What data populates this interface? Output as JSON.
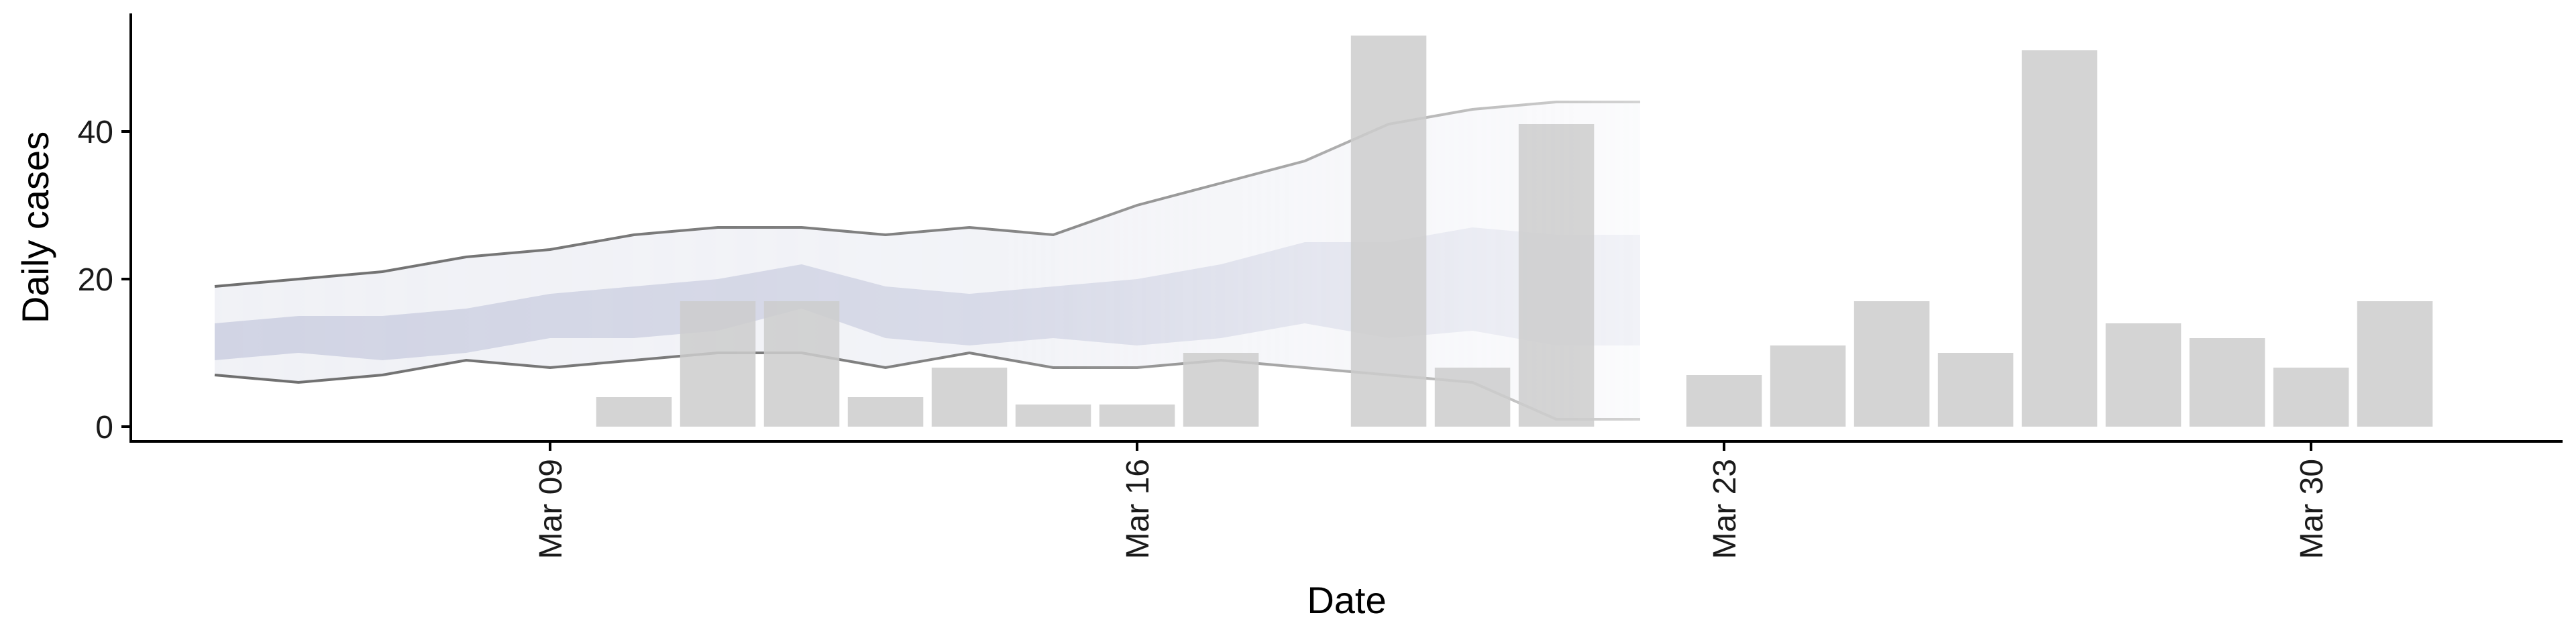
{
  "chart_data": {
    "type": "bar",
    "title": "",
    "xlabel": "Date",
    "ylabel": "Daily cases",
    "x_type": "date",
    "xlim": [
      "2020-03-04",
      "2020-04-02"
    ],
    "ylim": [
      -2,
      56
    ],
    "x_ticks": [
      {
        "date": "2020-03-09",
        "label": "Mar 09"
      },
      {
        "date": "2020-03-16",
        "label": "Mar 16"
      },
      {
        "date": "2020-03-23",
        "label": "Mar 23"
      },
      {
        "date": "2020-03-30",
        "label": "Mar 30"
      }
    ],
    "y_ticks": [
      0,
      20,
      40
    ],
    "grid": false,
    "legend": "none",
    "series": [
      {
        "type": "bar",
        "color": "#cccccc",
        "data": [
          {
            "date": "2020-03-10",
            "value": 4
          },
          {
            "date": "2020-03-11",
            "value": 17
          },
          {
            "date": "2020-03-12",
            "value": 17
          },
          {
            "date": "2020-03-13",
            "value": 4
          },
          {
            "date": "2020-03-14",
            "value": 8
          },
          {
            "date": "2020-03-15",
            "value": 3
          },
          {
            "date": "2020-03-16",
            "value": 3
          },
          {
            "date": "2020-03-17",
            "value": 10
          },
          {
            "date": "2020-03-19",
            "value": 53
          },
          {
            "date": "2020-03-20",
            "value": 8
          },
          {
            "date": "2020-03-21",
            "value": 41
          },
          {
            "date": "2020-03-23",
            "value": 7
          },
          {
            "date": "2020-03-24",
            "value": 11
          },
          {
            "date": "2020-03-25",
            "value": 17
          },
          {
            "date": "2020-03-26",
            "value": 10
          },
          {
            "date": "2020-03-27",
            "value": 51
          },
          {
            "date": "2020-03-28",
            "value": 14
          },
          {
            "date": "2020-03-29",
            "value": 12
          },
          {
            "date": "2020-03-30",
            "value": 8
          },
          {
            "date": "2020-03-31",
            "value": 17
          }
        ]
      },
      {
        "type": "ribbon",
        "role": "outer-interval",
        "fill_color": "#e4e6ef",
        "line_color": "#6e6e6e",
        "x": [
          "2020-03-05",
          "2020-03-06",
          "2020-03-07",
          "2020-03-08",
          "2020-03-09",
          "2020-03-10",
          "2020-03-11",
          "2020-03-12",
          "2020-03-13",
          "2020-03-14",
          "2020-03-15",
          "2020-03-16",
          "2020-03-17",
          "2020-03-18",
          "2020-03-19",
          "2020-03-20",
          "2020-03-21",
          "2020-03-22"
        ],
        "lower": [
          7,
          6,
          7,
          9,
          8,
          9,
          10,
          10,
          8,
          10,
          8,
          8,
          9,
          8,
          7,
          6,
          1,
          1
        ],
        "upper": [
          19,
          20,
          21,
          23,
          24,
          26,
          27,
          27,
          26,
          27,
          26,
          30,
          33,
          36,
          41,
          43,
          44,
          44
        ]
      },
      {
        "type": "ribbon",
        "role": "inner-interval",
        "fill_color": "#bcc1d9",
        "x": [
          "2020-03-05",
          "2020-03-06",
          "2020-03-07",
          "2020-03-08",
          "2020-03-09",
          "2020-03-10",
          "2020-03-11",
          "2020-03-12",
          "2020-03-13",
          "2020-03-14",
          "2020-03-15",
          "2020-03-16",
          "2020-03-17",
          "2020-03-18",
          "2020-03-19",
          "2020-03-20",
          "2020-03-21",
          "2020-03-22"
        ],
        "lower": [
          9,
          10,
          9,
          10,
          12,
          12,
          13,
          16,
          12,
          11,
          12,
          11,
          12,
          14,
          12,
          13,
          11,
          11
        ],
        "upper": [
          14,
          15,
          15,
          16,
          18,
          19,
          20,
          22,
          19,
          18,
          19,
          20,
          22,
          25,
          25,
          27,
          26,
          26
        ]
      }
    ]
  }
}
